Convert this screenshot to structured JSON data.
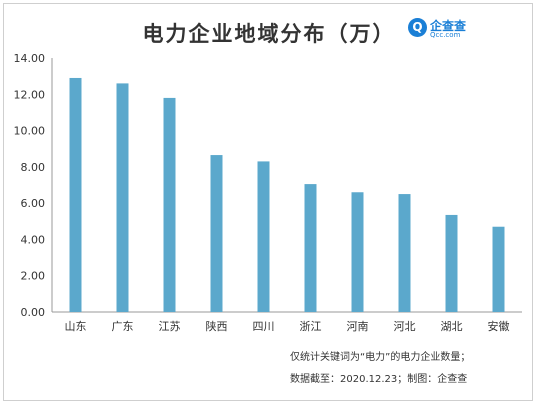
{
  "title": "电力企业地域分布（万）",
  "logo": {
    "mark": "Q",
    "name": "企查查",
    "sub": "Qcc.com"
  },
  "notes": {
    "line1": "仅统计关键词为“电力”的电力企业数量；",
    "line2": "数据截至：2020.12.23；制图：企查查"
  },
  "colors": {
    "bar": "#5ba8cc",
    "axis": "#999999",
    "grid": "#d9d9d9",
    "text": "#333333"
  },
  "chart_data": {
    "type": "bar",
    "title": "电力企业地域分布（万）",
    "categories": [
      "山东",
      "广东",
      "江苏",
      "陕西",
      "四川",
      "浙江",
      "河南",
      "河北",
      "湖北",
      "安徽"
    ],
    "values": [
      12.9,
      12.6,
      11.8,
      8.65,
      8.3,
      7.05,
      6.6,
      6.5,
      5.35,
      4.7
    ],
    "yticks": [
      "0.00",
      "2.00",
      "4.00",
      "6.00",
      "8.00",
      "10.00",
      "12.00",
      "14.00"
    ],
    "ylim": [
      0,
      14
    ],
    "xlabel": "",
    "ylabel": "",
    "grid": false,
    "legend": "none"
  }
}
